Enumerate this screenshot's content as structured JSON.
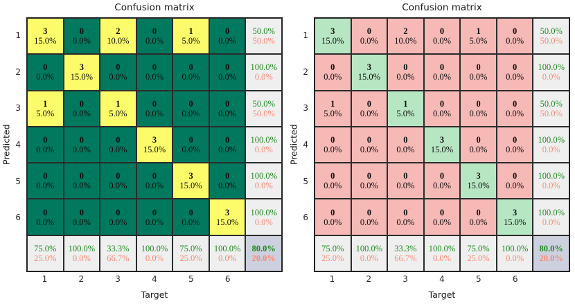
{
  "chart_data": {
    "type": "heatmap",
    "title": "Confusion matrix",
    "xlabel": "Target",
    "ylabel": "Predicted",
    "tick_labels": [
      "1",
      "2",
      "3",
      "4",
      "5",
      "6"
    ],
    "counts": [
      [
        3,
        0,
        2,
        0,
        1,
        0
      ],
      [
        0,
        3,
        0,
        0,
        0,
        0
      ],
      [
        1,
        0,
        1,
        0,
        0,
        0
      ],
      [
        0,
        0,
        0,
        3,
        0,
        0
      ],
      [
        0,
        0,
        0,
        0,
        3,
        0
      ],
      [
        0,
        0,
        0,
        0,
        0,
        3
      ]
    ],
    "cell_percents": [
      [
        "15.0%",
        "0.0%",
        "10.0%",
        "0.0%",
        "5.0%",
        "0.0%"
      ],
      [
        "0.0%",
        "15.0%",
        "0.0%",
        "0.0%",
        "0.0%",
        "0.0%"
      ],
      [
        "5.0%",
        "0.0%",
        "5.0%",
        "0.0%",
        "0.0%",
        "0.0%"
      ],
      [
        "0.0%",
        "0.0%",
        "0.0%",
        "15.0%",
        "0.0%",
        "0.0%"
      ],
      [
        "0.0%",
        "0.0%",
        "0.0%",
        "0.0%",
        "15.0%",
        "0.0%"
      ],
      [
        "0.0%",
        "0.0%",
        "0.0%",
        "0.0%",
        "0.0%",
        "15.0%"
      ]
    ],
    "row_summary": [
      [
        "50.0%",
        "50.0%"
      ],
      [
        "100.0%",
        "0.0%"
      ],
      [
        "50.0%",
        "50.0%"
      ],
      [
        "100.0%",
        "0.0%"
      ],
      [
        "100.0%",
        "0.0%"
      ],
      [
        "100.0%",
        "0.0%"
      ]
    ],
    "col_summary": [
      [
        "75.0%",
        "25.0%"
      ],
      [
        "100.0%",
        "0.0%"
      ],
      [
        "33.3%",
        "66.7%"
      ],
      [
        "100.0%",
        "0.0%"
      ],
      [
        "75.0%",
        "25.0%"
      ],
      [
        "100.0%",
        "0.0%"
      ]
    ],
    "corner": [
      "80.0%",
      "20.0%"
    ],
    "colors": {
      "good_text": "#1e8b1e",
      "bad_text": "#fa8a72",
      "summary_bg": "#efefef",
      "corner_bg": "#cdd0de",
      "border": "#2b2b2b"
    }
  },
  "panels": [
    {
      "name": "left-confusion-matrix",
      "color_rule": "nonzero",
      "highlight_bg": "#fcfc6a",
      "base_bg": "#00795f"
    },
    {
      "name": "right-confusion-matrix",
      "color_rule": "diagonal",
      "highlight_bg": "#b7e6c3",
      "base_bg": "#f6b9b6"
    }
  ]
}
